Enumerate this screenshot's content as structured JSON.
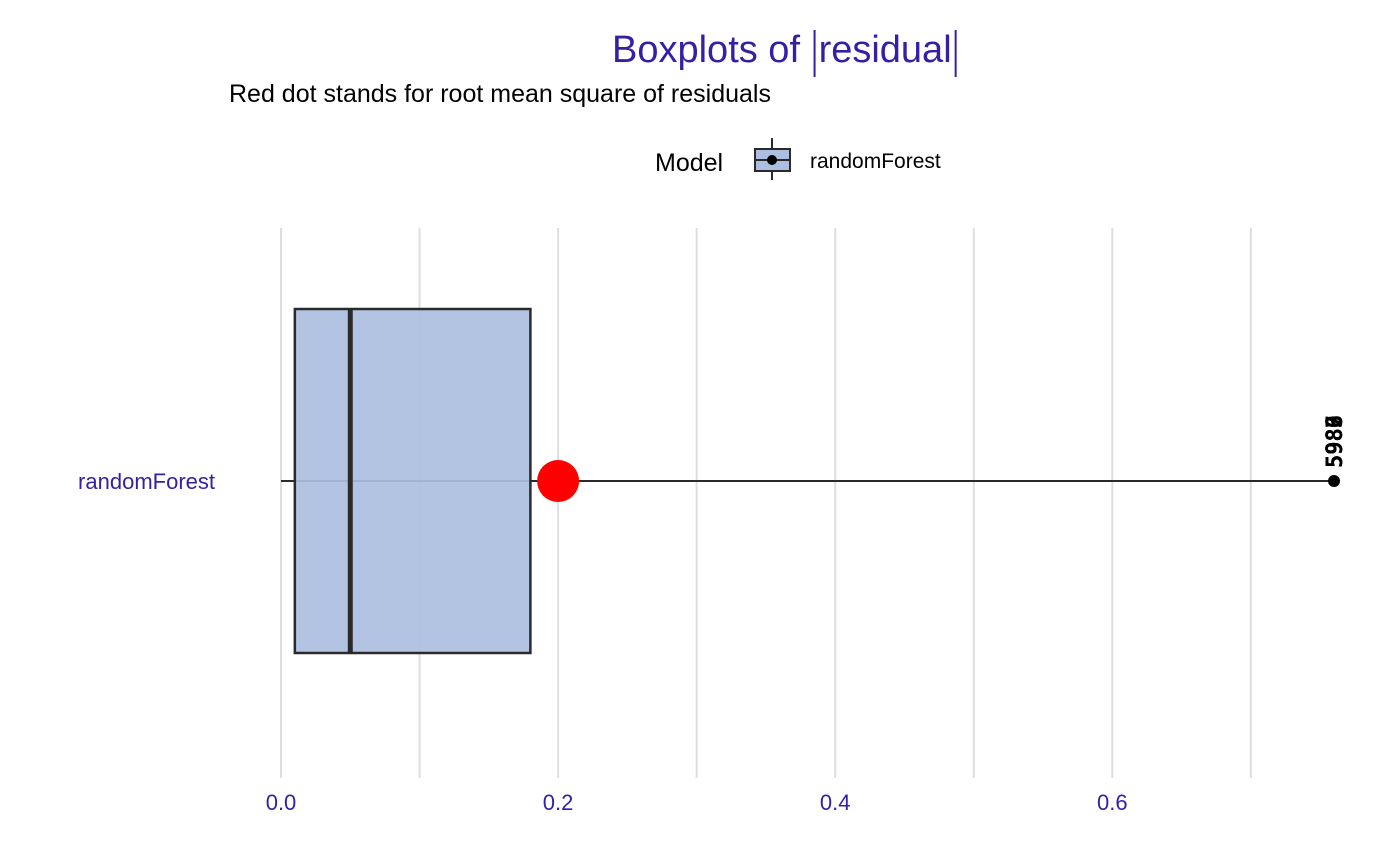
{
  "chart_data": {
    "type": "boxplot",
    "title": "Boxplots of |residual|",
    "title_prefix": "Boxplots of ",
    "title_residual": "residual",
    "subtitle": "Red dot stands for root mean square of residuals",
    "legend": {
      "title": "Model",
      "entries": [
        "randomForest"
      ],
      "placement": "top"
    },
    "orientation": "horizontal",
    "xlim": [
      0,
      0.76
    ],
    "x_ticks": [
      0.0,
      0.2,
      0.4,
      0.6
    ],
    "x_tick_labels": [
      "0.0",
      "0.2",
      "0.4",
      "0.6"
    ],
    "minor_gridlines": [
      0.1,
      0.3,
      0.5,
      0.7
    ],
    "grid": true,
    "series": [
      {
        "name": "randomForest",
        "whisker_low": 0.0,
        "q1": 0.01,
        "median": 0.05,
        "q3": 0.18,
        "whisker_high": 0.76,
        "rmse": 0.2,
        "outliers": [
          {
            "value": 0.76,
            "labels": [
              "5983",
              "5987",
              "5986",
              "5980"
            ]
          }
        ]
      }
    ],
    "colors": {
      "box_fill": "#adbfe0",
      "box_stroke": "#2a2a2a",
      "rmse_dot": "#ff0000",
      "text_accent": "#371ea3",
      "grid": "#dedede"
    }
  }
}
